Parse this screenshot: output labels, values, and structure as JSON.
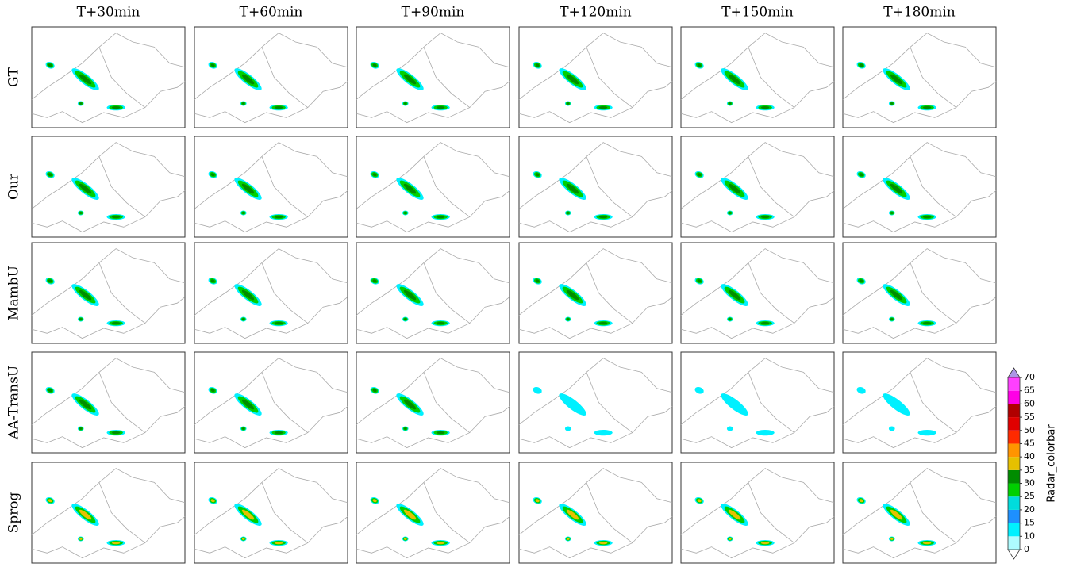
{
  "columns": [
    "T+30min",
    "T+60min",
    "T+90min",
    "T+120min",
    "T+150min",
    "T+180min"
  ],
  "rows": [
    "GT",
    "Our",
    "MambU",
    "AA-TransU",
    "Sprog"
  ],
  "colorbar": {
    "label": "Radar_colorbar",
    "ticks": [
      0,
      10,
      15,
      20,
      25,
      30,
      35,
      40,
      45,
      50,
      55,
      60,
      65,
      70
    ],
    "colors": [
      "#aefcff",
      "#00f0ff",
      "#1e90ff",
      "#00dcdc",
      "#00d000",
      "#008c00",
      "#e6c000",
      "#ff9400",
      "#ff2a00",
      "#e00000",
      "#b00000",
      "#ff00e6",
      "#ff40ff"
    ],
    "under": "#ffffff",
    "over": "#ad96e6"
  }
}
